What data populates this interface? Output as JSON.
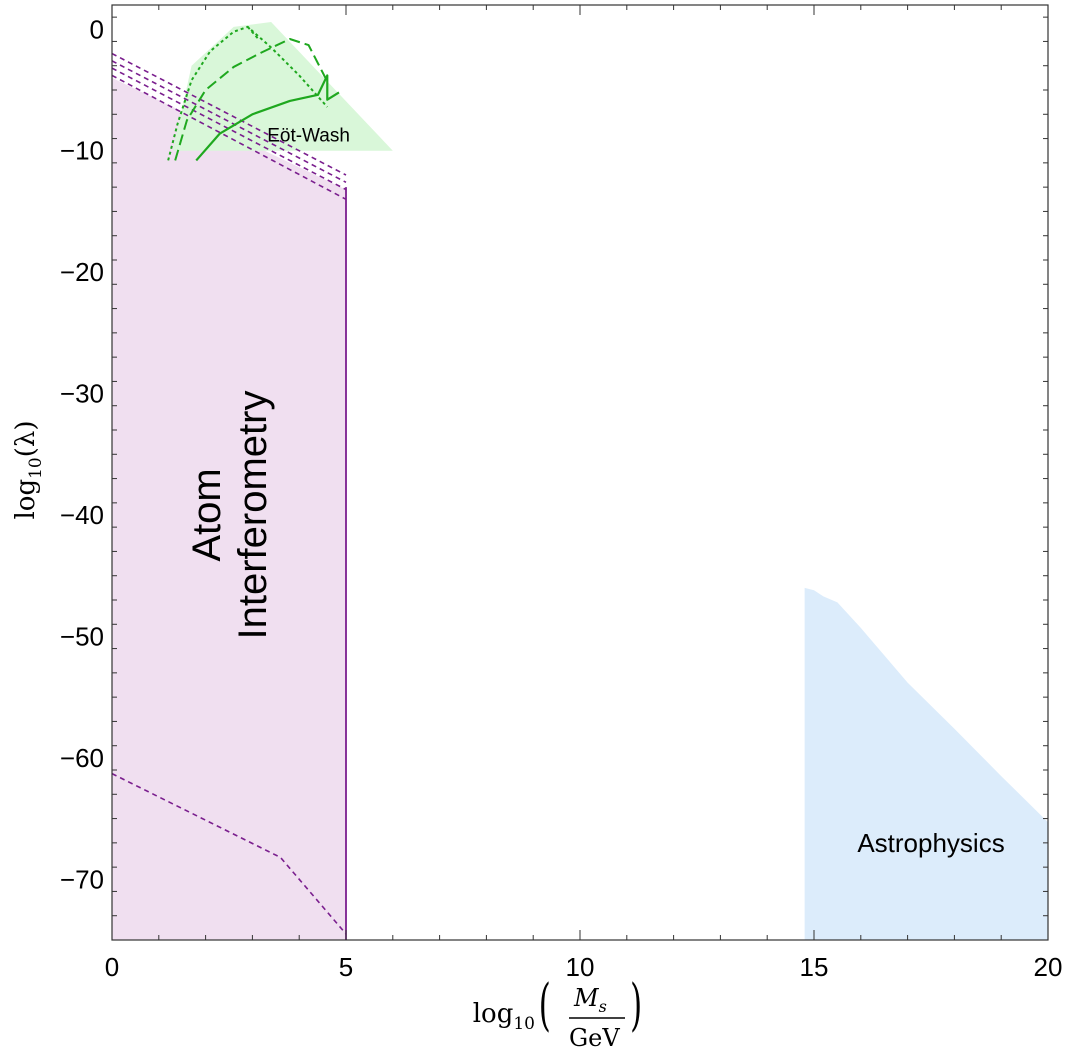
{
  "chart_data": {
    "type": "area",
    "xlabel": {
      "prefix": "log",
      "sub": "10",
      "num": "M",
      "num_sub": "s",
      "den": "GeV"
    },
    "ylabel": {
      "prefix": "log",
      "sub": "10",
      "var": "(λ)"
    },
    "xlim": [
      0,
      20
    ],
    "ylim": [
      -75,
      2
    ],
    "x_ticks": [
      0,
      5,
      10,
      15,
      20
    ],
    "y_ticks": [
      0,
      -10,
      -20,
      -30,
      -40,
      -50,
      -60,
      -70
    ],
    "grid": false,
    "regions": [
      {
        "label_lines": [
          "Atom",
          "Interferometry"
        ],
        "fill": "#f0dff0",
        "label_at": [
          2.5,
          -40
        ],
        "label_rotation": -90,
        "label_size": 40,
        "polygon": [
          [
            0,
            -4
          ],
          [
            5,
            -13.2
          ],
          [
            5,
            -75
          ],
          [
            0,
            -75
          ]
        ]
      },
      {
        "label_lines": [
          "Eöt-Wash"
        ],
        "fill": "#d9f7d9",
        "label_at": [
          4.2,
          -8.7
        ],
        "label_rotation": 0,
        "label_size": 19,
        "polygon": [
          [
            1.3,
            -10
          ],
          [
            6.0,
            -10
          ],
          [
            3.4,
            0.6
          ],
          [
            2.6,
            0.2
          ],
          [
            1.7,
            -3
          ]
        ]
      },
      {
        "label_lines": [
          "Astrophysics"
        ],
        "fill": "#dcecfb",
        "label_at": [
          17.5,
          -67
        ],
        "label_rotation": 0,
        "label_size": 26,
        "polygon": [
          [
            14.8,
            -46
          ],
          [
            15.0,
            -46.2
          ],
          [
            15.2,
            -46.7
          ],
          [
            15.5,
            -47.2
          ],
          [
            16.0,
            -49.3
          ],
          [
            17.0,
            -53.8
          ],
          [
            18.0,
            -57.6
          ],
          [
            19.0,
            -61.5
          ],
          [
            20.0,
            -65.3
          ],
          [
            20.0,
            -75
          ],
          [
            14.8,
            -75
          ]
        ]
      }
    ],
    "series": [
      {
        "color": "#7a1e8e",
        "dash": "5,4",
        "width": 1.6,
        "points": [
          [
            0,
            -2
          ],
          [
            5,
            -12
          ]
        ]
      },
      {
        "color": "#7a1e8e",
        "dash": "5,4",
        "width": 1.6,
        "points": [
          [
            0,
            -2.6
          ],
          [
            5,
            -12.6
          ]
        ]
      },
      {
        "color": "#7a1e8e",
        "dash": "5,4",
        "width": 1.6,
        "points": [
          [
            0,
            -3.2
          ],
          [
            5,
            -13.2
          ]
        ]
      },
      {
        "color": "#7a1e8e",
        "dash": "5,4",
        "width": 1.6,
        "points": [
          [
            0,
            -3.8
          ],
          [
            5,
            -14
          ]
        ]
      },
      {
        "color": "#7a1e8e",
        "dash": "5,4",
        "width": 1.6,
        "points": [
          [
            0,
            -61.3
          ],
          [
            3.6,
            -68.2
          ],
          [
            5,
            -74.5
          ]
        ]
      },
      {
        "color": "#7a1e8e",
        "dash": "",
        "width": 1.8,
        "points": [
          [
            5,
            -13
          ],
          [
            5,
            -75
          ]
        ]
      },
      {
        "color": "#1fa81f",
        "dash": "",
        "width": 2.2,
        "points": [
          [
            1.8,
            -10.8
          ],
          [
            2.3,
            -8.6
          ],
          [
            3.0,
            -7.0
          ],
          [
            3.8,
            -5.9
          ],
          [
            4.4,
            -5.4
          ],
          [
            4.6,
            -3.8
          ],
          [
            4.6,
            -5.8
          ],
          [
            4.85,
            -5.2
          ]
        ]
      },
      {
        "color": "#1fa81f",
        "dash": "11,5",
        "width": 2.0,
        "points": [
          [
            1.35,
            -10.8
          ],
          [
            1.6,
            -7.5
          ],
          [
            2.0,
            -5.0
          ],
          [
            2.6,
            -3.1
          ],
          [
            3.2,
            -1.9
          ],
          [
            3.8,
            -0.8
          ],
          [
            4.2,
            -1.3
          ],
          [
            4.6,
            -4.3
          ]
        ]
      },
      {
        "color": "#1fa81f",
        "dash": "3,3",
        "width": 2.0,
        "points": [
          [
            1.2,
            -10.8
          ],
          [
            1.4,
            -7.8
          ],
          [
            1.7,
            -4.2
          ],
          [
            2.1,
            -1.8
          ],
          [
            2.6,
            -0.2
          ],
          [
            2.9,
            0.2
          ],
          [
            3.4,
            -1.5
          ],
          [
            4.0,
            -3.8
          ],
          [
            4.6,
            -6.4
          ]
        ]
      },
      {
        "color": "#1fa81f",
        "dash": "3,3",
        "width": 2.0,
        "points": [
          [
            2.9,
            0.2
          ],
          [
            3.15,
            -0.9
          ]
        ]
      }
    ]
  }
}
